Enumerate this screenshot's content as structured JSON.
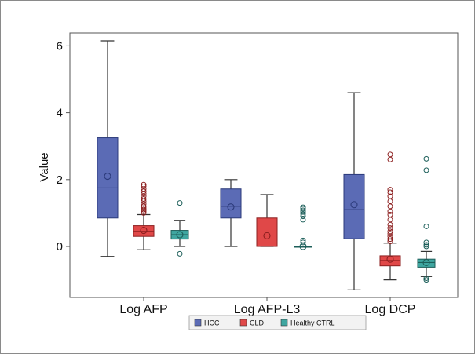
{
  "chart_data": {
    "type": "boxplot",
    "ylabel": "Value",
    "ylim": [
      -1.5,
      6.4
    ],
    "yticks": [
      "0",
      "2",
      "4",
      "6"
    ],
    "categories": [
      "Log AFP",
      "Log AFP-L3",
      "Log DCP"
    ],
    "legend": [
      "HCC",
      "CLD",
      "Healthy CTRL"
    ],
    "legend_position": "bottom",
    "grid": false,
    "colors": {
      "HCC": "#5b6bb5",
      "CLD": "#e04848",
      "Healthy CTRL": "#3fa6a0"
    },
    "series": [
      {
        "name": "HCC",
        "boxes": [
          {
            "category": "Log AFP",
            "min": -0.3,
            "q1": 0.85,
            "median": 1.75,
            "q3": 3.25,
            "max": 6.15,
            "mean": 2.1,
            "outliers": []
          },
          {
            "category": "Log AFP-L3",
            "min": 0.0,
            "q1": 0.85,
            "median": 1.2,
            "q3": 1.72,
            "max": 2.0,
            "mean": 1.18,
            "outliers": []
          },
          {
            "category": "Log DCP",
            "min": -1.3,
            "q1": 0.23,
            "median": 1.1,
            "q3": 2.15,
            "max": 4.6,
            "mean": 1.25,
            "outliers": []
          }
        ]
      },
      {
        "name": "CLD",
        "boxes": [
          {
            "category": "Log AFP",
            "min": -0.1,
            "q1": 0.3,
            "median": 0.45,
            "q3": 0.62,
            "max": 0.95,
            "mean": 0.48,
            "outliers": [
              1.0,
              1.05,
              1.1,
              1.15,
              1.2,
              1.27,
              1.35,
              1.42,
              1.5,
              1.58,
              1.65,
              1.72,
              1.8,
              1.85
            ]
          },
          {
            "category": "Log AFP-L3",
            "min": 0.0,
            "q1": 0.0,
            "median": 0.0,
            "q3": 0.85,
            "max": 1.55,
            "mean": 0.32,
            "outliers": []
          },
          {
            "category": "Log DCP",
            "min": -1.0,
            "q1": -0.58,
            "median": -0.42,
            "q3": -0.28,
            "max": 0.1,
            "mean": -0.38,
            "outliers": [
              0.15,
              0.22,
              0.3,
              0.38,
              0.45,
              0.55,
              0.65,
              0.8,
              0.95,
              1.05,
              1.2,
              1.35,
              1.5,
              1.62,
              1.7,
              2.6,
              2.75
            ]
          }
        ]
      },
      {
        "name": "Healthy CTRL",
        "boxes": [
          {
            "category": "Log AFP",
            "min": 0.0,
            "q1": 0.22,
            "median": 0.35,
            "q3": 0.48,
            "max": 0.78,
            "mean": 0.35,
            "outliers": [
              -0.22,
              1.3
            ]
          },
          {
            "category": "Log AFP-L3",
            "min": 0.0,
            "q1": 0.0,
            "median": 0.0,
            "q3": 0.0,
            "max": 0.0,
            "mean": 0.0,
            "outliers": [
              0.12,
              0.18,
              0.8,
              0.9,
              0.97,
              1.03,
              1.08,
              1.13,
              1.17
            ]
          },
          {
            "category": "Log DCP",
            "min": -0.9,
            "q1": -0.62,
            "median": -0.48,
            "q3": -0.38,
            "max": -0.15,
            "mean": -0.48,
            "outliers": [
              -1.0,
              -0.95,
              0.0,
              0.05,
              0.12,
              0.6,
              2.28,
              2.62
            ]
          }
        ]
      }
    ]
  }
}
